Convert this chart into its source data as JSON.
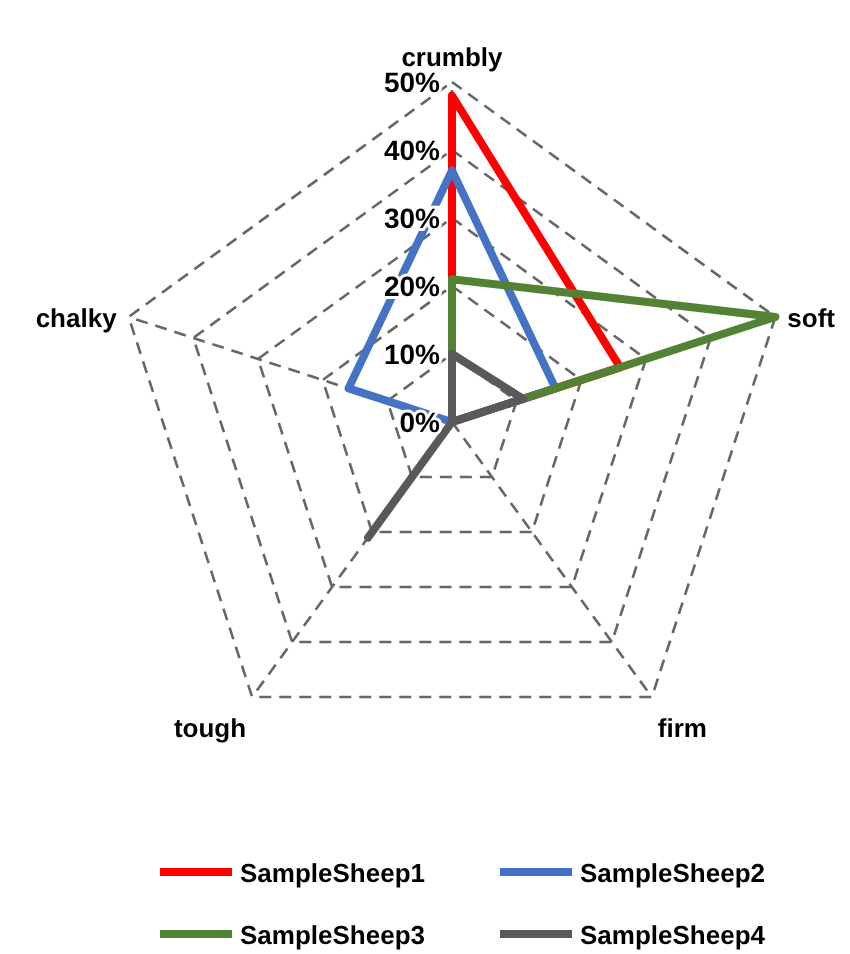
{
  "chart_data": {
    "type": "radar",
    "categories": [
      "crumbly",
      "soft",
      "firm",
      "tough",
      "chalky"
    ],
    "series": [
      {
        "name": "SampleSheep1",
        "color": "#ff0000",
        "values": [
          48,
          26,
          0,
          0,
          0
        ]
      },
      {
        "name": "SampleSheep2",
        "color": "#4472c4",
        "values": [
          37,
          16,
          0,
          0,
          16
        ]
      },
      {
        "name": "SampleSheep3",
        "color": "#548235",
        "values": [
          21,
          50,
          0,
          0,
          0
        ]
      },
      {
        "name": "SampleSheep4",
        "color": "#595959",
        "values": [
          10,
          11,
          0,
          21,
          0
        ]
      }
    ],
    "ylim": [
      0,
      50
    ],
    "yticks": [
      {
        "value": 0,
        "label": "0%"
      },
      {
        "value": 10,
        "label": "10%"
      },
      {
        "value": 20,
        "label": "20%"
      },
      {
        "value": 30,
        "label": "30%"
      },
      {
        "value": 40,
        "label": "40%"
      },
      {
        "value": 50,
        "label": "50%"
      }
    ],
    "grid": true,
    "legend": "bottom",
    "marker": "none",
    "line_style": "solid"
  }
}
